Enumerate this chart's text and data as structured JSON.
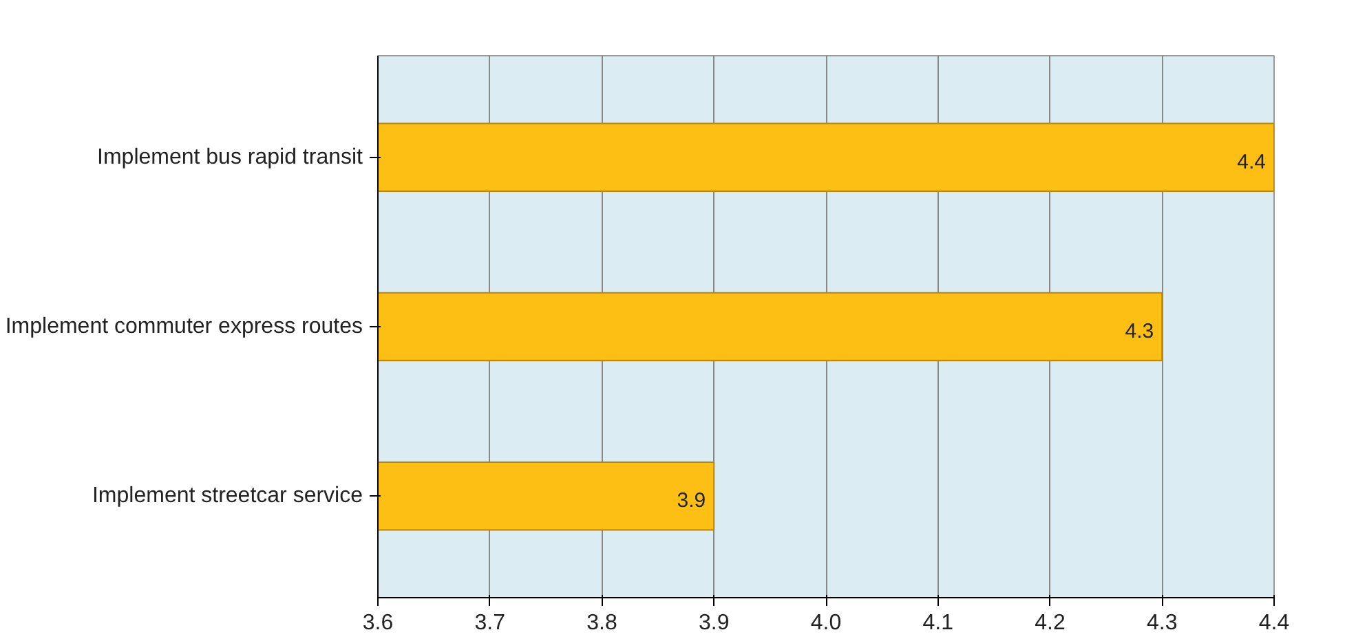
{
  "chart_data": {
    "type": "bar",
    "orientation": "horizontal",
    "categories": [
      "Implement bus rapid transit",
      "Implement commuter express routes",
      "Implement streetcar service"
    ],
    "values": [
      4.4,
      4.3,
      3.9
    ],
    "color": "#fdbf13",
    "xlim": [
      3.6,
      4.4
    ],
    "xticks": [
      3.6,
      3.7,
      3.8,
      3.9,
      {
        "value": 4,
        "label": "4.0"
      },
      4.1,
      4.2,
      4.3,
      4.4
    ],
    "grid": "x",
    "data_labels": true
  }
}
